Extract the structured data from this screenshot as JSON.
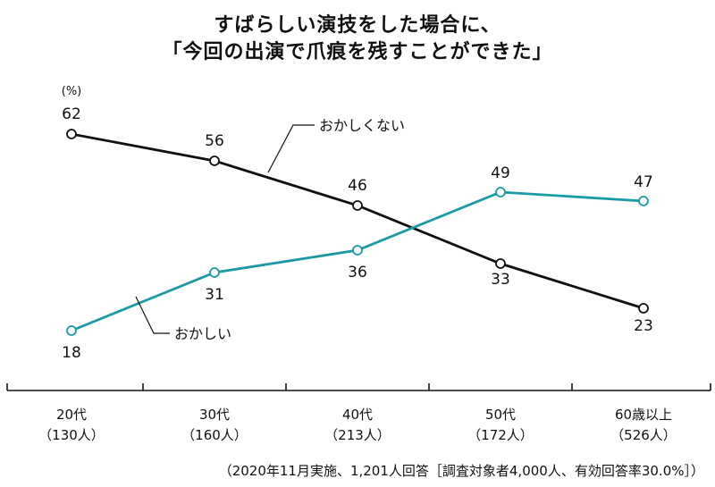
{
  "title_line1": "すばらしい演技をした場合に、",
  "title_line2": "「今回の出演で爪痕を残すことができた」",
  "footnote": "（2020年11月実施、1,201人回答［調査対象者4,000人、有効回答率30.0%］）",
  "colors": {
    "black_series": "#111111",
    "teal_series": "#1a9aa6"
  },
  "chart_data": {
    "type": "line",
    "unit": "(%)",
    "categories": [
      "20代",
      "30代",
      "40代",
      "50代",
      "60歳以上"
    ],
    "category_counts": [
      "（130人）",
      "（160人）",
      "（213人）",
      "（172人）",
      "（526人）"
    ],
    "ylim": [
      0,
      70
    ],
    "series": [
      {
        "name": "おかしくない",
        "values": [
          62,
          56,
          46,
          33,
          23
        ]
      },
      {
        "name": "おかしい",
        "values": [
          18,
          31,
          36,
          49,
          47
        ]
      }
    ]
  }
}
